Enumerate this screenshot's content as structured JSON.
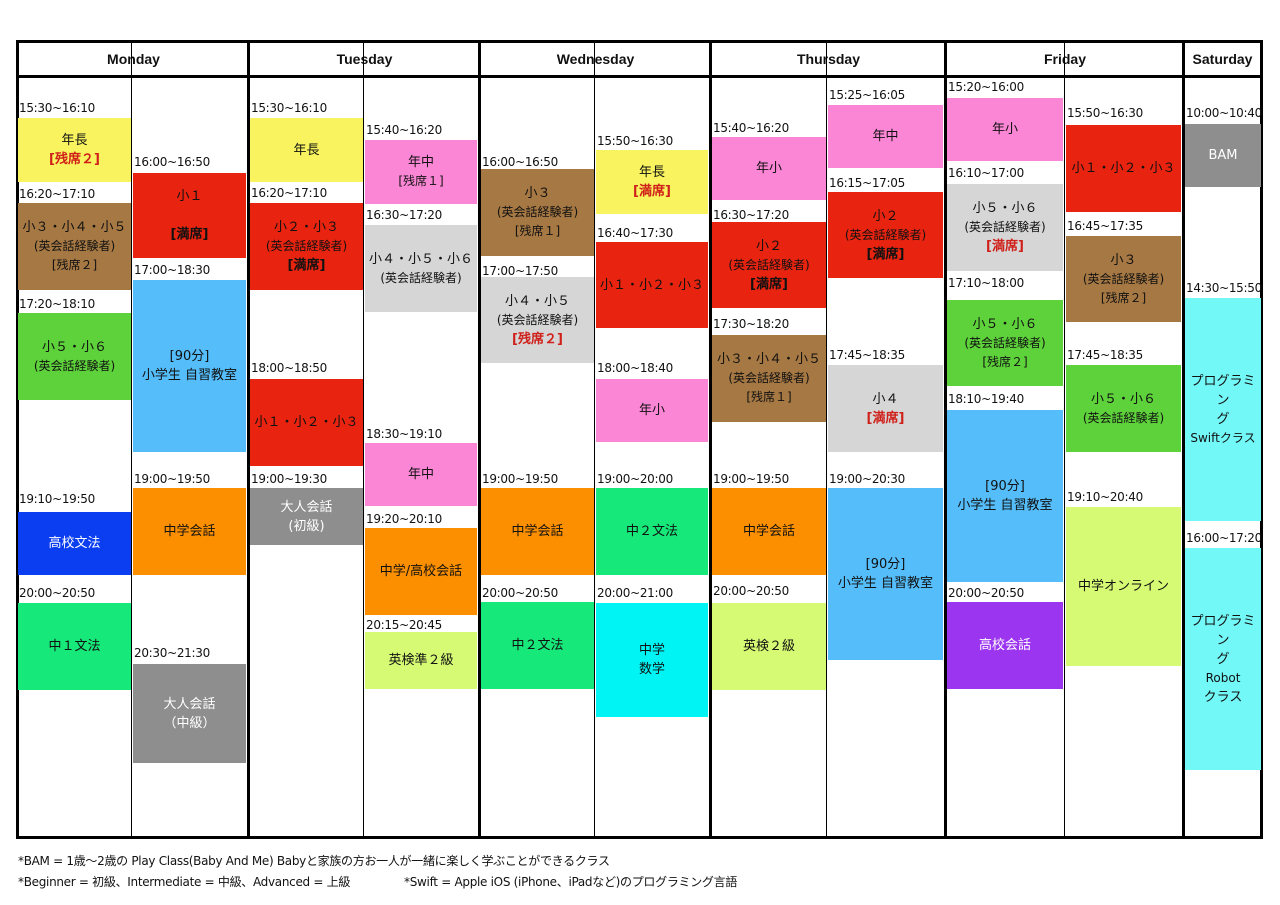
{
  "days": [
    "Monday",
    "Tuesday",
    "Wednesday",
    "Thursday",
    "Friday",
    "Saturday"
  ],
  "slots": [
    {
      "time": "15:30~16:10",
      "lines": [
        {
          "t": "年長"
        },
        {
          "t": "[残席２]",
          "s": "warn"
        }
      ],
      "color": "#f8f35e"
    },
    {
      "time": "16:20~17:10",
      "lines": [
        {
          "t": "小３・小４・小５"
        },
        {
          "t": "(英会話経験者)",
          "s": "sub"
        },
        {
          "t": "[残席２]",
          "s": "sub"
        }
      ],
      "color": "#a67843"
    },
    {
      "time": "17:20~18:10",
      "lines": [
        {
          "t": "小５・小６"
        },
        {
          "t": "(英会話経験者)",
          "s": "sub"
        }
      ],
      "color": "#5dd23a"
    },
    {
      "time": "19:10~19:50",
      "lines": [
        {
          "t": "高校文法"
        }
      ],
      "color": "#0a3ef0",
      "dark": true
    },
    {
      "time": "20:00~20:50",
      "lines": [
        {
          "t": "中１文法"
        }
      ],
      "color": "#17e87a"
    },
    {
      "time": "16:00~16:50",
      "lines": [
        {
          "t": "小１"
        },
        {
          "t": ""
        },
        {
          "t": "[満席]",
          "s": "bold"
        }
      ],
      "color": "#e8230f"
    },
    {
      "time": "17:00~18:30",
      "lines": [
        {
          "t": "[90分]"
        },
        {
          "t": "小学生 自習教室"
        }
      ],
      "color": "#54bdfa"
    },
    {
      "time": "19:00~19:50",
      "lines": [
        {
          "t": "中学会話"
        }
      ],
      "color": "#fb8f00"
    },
    {
      "time": "20:30~21:30",
      "lines": [
        {
          "t": "大人会話"
        },
        {
          "t": "（中級）"
        }
      ],
      "color": "#8e8e8e",
      "dark": true
    },
    {
      "time": "15:30~16:10",
      "lines": [
        {
          "t": "年長"
        }
      ],
      "color": "#f8f35e"
    },
    {
      "time": "16:20~17:10",
      "lines": [
        {
          "t": "小２・小３"
        },
        {
          "t": "(英会話経験者)",
          "s": "sub"
        },
        {
          "t": "[満席]",
          "s": "bold"
        }
      ],
      "color": "#e8230f"
    },
    {
      "time": "18:00~18:50",
      "lines": [
        {
          "t": "小１・小２・小３"
        }
      ],
      "color": "#e8230f"
    },
    {
      "time": "19:00~19:30",
      "lines": [
        {
          "t": "大人会話"
        },
        {
          "t": "(初級)"
        }
      ],
      "color": "#8e8e8e",
      "dark": true
    },
    {
      "time": "15:40~16:20",
      "lines": [
        {
          "t": "年中"
        },
        {
          "t": "[残席１]",
          "s": "sub"
        }
      ],
      "color": "#fb86d5"
    },
    {
      "time": "16:30~17:20",
      "lines": [
        {
          "t": "小４・小５・小６"
        },
        {
          "t": "(英会話経験者)",
          "s": "sub"
        }
      ],
      "color": "#d6d6d6"
    },
    {
      "time": "18:30~19:10",
      "lines": [
        {
          "t": "年中"
        }
      ],
      "color": "#fb86d5"
    },
    {
      "time": "19:20~20:10",
      "lines": [
        {
          "t": "中学/高校会話"
        }
      ],
      "color": "#fb8f00"
    },
    {
      "time": "20:15~20:45",
      "lines": [
        {
          "t": "英検準２級"
        }
      ],
      "color": "#d6fa74"
    },
    {
      "time": "16:00~16:50",
      "lines": [
        {
          "t": "小３"
        },
        {
          "t": "(英会話経験者)",
          "s": "sub"
        },
        {
          "t": "[残席１]",
          "s": "sub"
        }
      ],
      "color": "#a67843"
    },
    {
      "time": "17:00~17:50",
      "lines": [
        {
          "t": "小４・小５"
        },
        {
          "t": "(英会話経験者)",
          "s": "sub"
        },
        {
          "t": "[残席２]",
          "s": "warn"
        }
      ],
      "color": "#d6d6d6"
    },
    {
      "time": "19:00~19:50",
      "lines": [
        {
          "t": "中学会話"
        }
      ],
      "color": "#fb8f00"
    },
    {
      "time": "20:00~20:50",
      "lines": [
        {
          "t": "中２文法"
        }
      ],
      "color": "#17e87a"
    },
    {
      "time": "15:50~16:30",
      "lines": [
        {
          "t": "年長"
        },
        {
          "t": "[満席]",
          "s": "warn"
        }
      ],
      "color": "#f8f35e"
    },
    {
      "time": "16:40~17:30",
      "lines": [
        {
          "t": "小１・小２・小３"
        }
      ],
      "color": "#e8230f"
    },
    {
      "time": "18:00~18:40",
      "lines": [
        {
          "t": "年小"
        }
      ],
      "color": "#fb86d5"
    },
    {
      "time": "19:00~20:00",
      "lines": [
        {
          "t": "中２文法"
        }
      ],
      "color": "#17e87a"
    },
    {
      "time": "20:00~21:00",
      "lines": [
        {
          "t": "中学"
        },
        {
          "t": "数学"
        }
      ],
      "color": "#00f4f4"
    },
    {
      "time": "15:40~16:20",
      "lines": [
        {
          "t": "年小"
        }
      ],
      "color": "#fb86d5"
    },
    {
      "time": "16:30~17:20",
      "lines": [
        {
          "t": "小２"
        },
        {
          "t": "(英会話経験者)",
          "s": "sub"
        },
        {
          "t": "[満席]",
          "s": "bold"
        }
      ],
      "color": "#e8230f"
    },
    {
      "time": "17:30~18:20",
      "lines": [
        {
          "t": "小３・小４・小５"
        },
        {
          "t": "(英会話経験者)",
          "s": "sub"
        },
        {
          "t": "[残席１]",
          "s": "sub"
        }
      ],
      "color": "#a67843"
    },
    {
      "time": "19:00~19:50",
      "lines": [
        {
          "t": "中学会話"
        }
      ],
      "color": "#fb8f00"
    },
    {
      "time": "20:00~20:50",
      "lines": [
        {
          "t": "英検２級"
        }
      ],
      "color": "#d6fa74"
    },
    {
      "time": "15:25~16:05",
      "lines": [
        {
          "t": "年中"
        }
      ],
      "color": "#fb86d5"
    },
    {
      "time": "16:15~17:05",
      "lines": [
        {
          "t": "小２"
        },
        {
          "t": "(英会話経験者)",
          "s": "sub"
        },
        {
          "t": "[満席]",
          "s": "bold"
        }
      ],
      "color": "#e8230f"
    },
    {
      "time": "17:45~18:35",
      "lines": [
        {
          "t": "小４"
        },
        {
          "t": "[満席]",
          "s": "warn"
        }
      ],
      "color": "#d6d6d6"
    },
    {
      "time": "19:00~20:30",
      "lines": [
        {
          "t": "[90分]"
        },
        {
          "t": "小学生 自習教室"
        }
      ],
      "color": "#54bdfa"
    },
    {
      "time": "15:20~16:00",
      "lines": [
        {
          "t": "年小"
        }
      ],
      "color": "#fb86d5"
    },
    {
      "time": "16:10~17:00",
      "lines": [
        {
          "t": "小５・小６"
        },
        {
          "t": "(英会話経験者)",
          "s": "sub"
        },
        {
          "t": "[満席]",
          "s": "warn"
        }
      ],
      "color": "#d6d6d6"
    },
    {
      "time": "17:10~18:00",
      "lines": [
        {
          "t": "小５・小６"
        },
        {
          "t": "(英会話経験者)",
          "s": "sub"
        },
        {
          "t": "[残席２]",
          "s": "sub"
        }
      ],
      "color": "#5dd23a"
    },
    {
      "time": "18:10~19:40",
      "lines": [
        {
          "t": "[90分]"
        },
        {
          "t": "小学生 自習教室"
        }
      ],
      "color": "#54bdfa"
    },
    {
      "time": "20:00~20:50",
      "lines": [
        {
          "t": "高校会話"
        }
      ],
      "color": "#9b35f0",
      "dark": true
    },
    {
      "time": "15:50~16:30",
      "lines": [
        {
          "t": "小１・小２・小３"
        }
      ],
      "color": "#e8230f"
    },
    {
      "time": "16:45~17:35",
      "lines": [
        {
          "t": "小３"
        },
        {
          "t": "(英会話経験者)",
          "s": "sub"
        },
        {
          "t": "[残席２]",
          "s": "sub"
        }
      ],
      "color": "#a67843"
    },
    {
      "time": "17:45~18:35",
      "lines": [
        {
          "t": "小５・小６"
        },
        {
          "t": "(英会話経験者)",
          "s": "sub"
        }
      ],
      "color": "#5dd23a"
    },
    {
      "time": "19:10~20:40",
      "lines": [
        {
          "t": "中学オンライン"
        }
      ],
      "color": "#d6fa74"
    },
    {
      "time": "10:00~10:40",
      "lines": [
        {
          "t": "BAM"
        }
      ],
      "color": "#8e8e8e",
      "dark": true
    },
    {
      "time": "14:30~15:50",
      "lines": [
        {
          "t": "プログラミン"
        },
        {
          "t": "グ"
        },
        {
          "t": "Swiftクラス",
          "s": "sub"
        }
      ],
      "color": "#73f8f8"
    },
    {
      "time": "16:00~17:20",
      "lines": [
        {
          "t": "プログラミン"
        },
        {
          "t": "グ"
        },
        {
          "t": "Robot",
          "s": "sub"
        },
        {
          "t": "クラス"
        }
      ],
      "color": "#73f8f8"
    }
  ],
  "footer": {
    "line1": "*BAM = 1歳〜2歳の Play Class(Baby And Me) Babyと家族の方お一人が一緒に楽しく学ぶことができるクラス",
    "line2a": "*Beginner = 初級、Intermediate = 中級、Advanced = 上級",
    "line2b": "*Swift = Apple iOS (iPhone、iPadなど)のプログラミング言語"
  }
}
